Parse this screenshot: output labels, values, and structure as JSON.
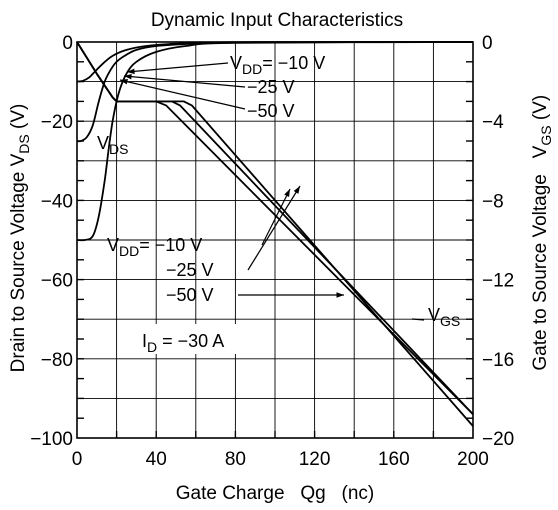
{
  "chart_data": {
    "type": "line",
    "title": "Dynamic Input Characteristics",
    "xlabel": "Gate Charge   Qg   (nc)",
    "ylabel_left": {
      "main": "Drain to Source Voltage V",
      "sub": "DS",
      "tail": " (V)"
    },
    "ylabel_right": {
      "main": "Gate to Source Voltage   V",
      "sub": "GS",
      "tail": " (V)"
    },
    "xlim": [
      0,
      200
    ],
    "ylim_left": [
      -100,
      0
    ],
    "ylim_right": [
      -20,
      0
    ],
    "x_ticks": [
      "0",
      "40",
      "80",
      "120",
      "160",
      "200"
    ],
    "y_ticks_left": [
      "0",
      "−20",
      "−40",
      "−60",
      "−80",
      "−100"
    ],
    "y_ticks_right": [
      "0",
      "−4",
      "−8",
      "−12",
      "−16",
      "−20"
    ],
    "grid": true,
    "series": [
      {
        "name": "VDS, VDD = −10 V",
        "axis": "left",
        "x": [
          0,
          3,
          6,
          9,
          13,
          18,
          25,
          35,
          50,
          70,
          100,
          200
        ],
        "y": [
          -10,
          -9.8,
          -9,
          -7.5,
          -5.5,
          -3.5,
          -2,
          -1,
          -0.4,
          -0.1,
          0,
          0
        ]
      },
      {
        "name": "VDS, VDD = −25 V",
        "axis": "left",
        "x": [
          0,
          2,
          5,
          8,
          11,
          14,
          17,
          20,
          24,
          30,
          40,
          55,
          80,
          200
        ],
        "y": [
          -25,
          -25,
          -24,
          -21,
          -15,
          -10,
          -7,
          -5,
          -3.5,
          -2,
          -1,
          -0.5,
          -0.1,
          0
        ]
      },
      {
        "name": "VDS, VDD = −50 V",
        "axis": "left",
        "x": [
          0,
          4,
          8,
          11,
          14,
          16,
          18,
          21,
          25,
          30,
          40,
          55,
          80,
          200
        ],
        "y": [
          -50,
          -50,
          -49,
          -44,
          -35,
          -27,
          -20,
          -13,
          -8,
          -5,
          -2.5,
          -1,
          -0.2,
          0
        ]
      },
      {
        "name": "VGS, VDD = −10 V",
        "axis": "right",
        "x": [
          0,
          5,
          10,
          14,
          16,
          18,
          20,
          40,
          45,
          200
        ],
        "y": [
          0,
          -0.8,
          -1.6,
          -2.2,
          -2.5,
          -2.8,
          -3,
          -3,
          -3.2,
          -18.8
        ]
      },
      {
        "name": "VGS, VDD = −25 V",
        "axis": "right",
        "x": [
          0,
          5,
          10,
          14,
          16,
          18,
          20,
          48,
          52,
          200
        ],
        "y": [
          0,
          -0.8,
          -1.6,
          -2.2,
          -2.5,
          -2.8,
          -3,
          -3,
          -3.2,
          -18.8
        ]
      },
      {
        "name": "VGS, VDD = −50 V",
        "axis": "right",
        "x": [
          0,
          5,
          10,
          14,
          16,
          18,
          20,
          54,
          58,
          200
        ],
        "y": [
          0,
          -0.8,
          -1.6,
          -2.2,
          -2.5,
          -2.8,
          -3,
          -3,
          -3.2,
          -19.4
        ]
      }
    ],
    "annotations": [
      {
        "id": "vdd-top-1",
        "pre": "V",
        "sub": "DD",
        "post": "= −10 V"
      },
      {
        "id": "vdd-top-2",
        "text": "−25 V"
      },
      {
        "id": "vdd-top-3",
        "text": "−50 V"
      },
      {
        "id": "vds-label",
        "pre": "V",
        "sub": "DS"
      },
      {
        "id": "vdd-mid-1",
        "pre": "V",
        "sub": "DD",
        "post": "= −10 V"
      },
      {
        "id": "vdd-mid-2",
        "text": "−25 V"
      },
      {
        "id": "vdd-mid-3",
        "text": "−50 V"
      },
      {
        "id": "vgs-label",
        "pre": "V",
        "sub": "GS"
      },
      {
        "id": "id-label",
        "pre": "I",
        "sub": "D",
        "post": " = −30 A"
      }
    ]
  }
}
